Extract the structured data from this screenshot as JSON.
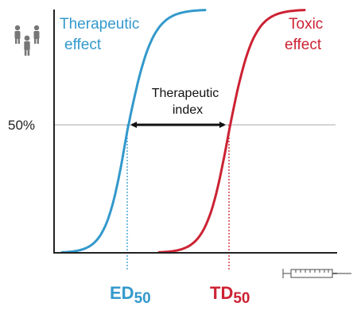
{
  "chart_data": {
    "type": "line",
    "y_tick_label": "50%",
    "series": [
      {
        "name": "Therapeutic effect",
        "label_lines": [
          "Therapeutic",
          "effect"
        ],
        "color": "#3399cc",
        "curve": "sigmoid",
        "midpoint_label": "ED",
        "midpoint_subscript": "50"
      },
      {
        "name": "Toxic effect",
        "label_lines": [
          "Toxic",
          "effect"
        ],
        "color": "#cc2233",
        "curve": "sigmoid",
        "midpoint_label": "TD",
        "midpoint_subscript": "50"
      }
    ],
    "annotation": {
      "label_lines": [
        "Therapeutic",
        "index"
      ],
      "from": "ED50",
      "to": "TD50"
    },
    "y_axis_icon": "people-icon",
    "x_axis_icon": "syringe-icon",
    "reference_line": "50%",
    "colors": {
      "axis": "#222222",
      "reference_line": "#bbbbbb",
      "arrow": "#111111"
    }
  }
}
